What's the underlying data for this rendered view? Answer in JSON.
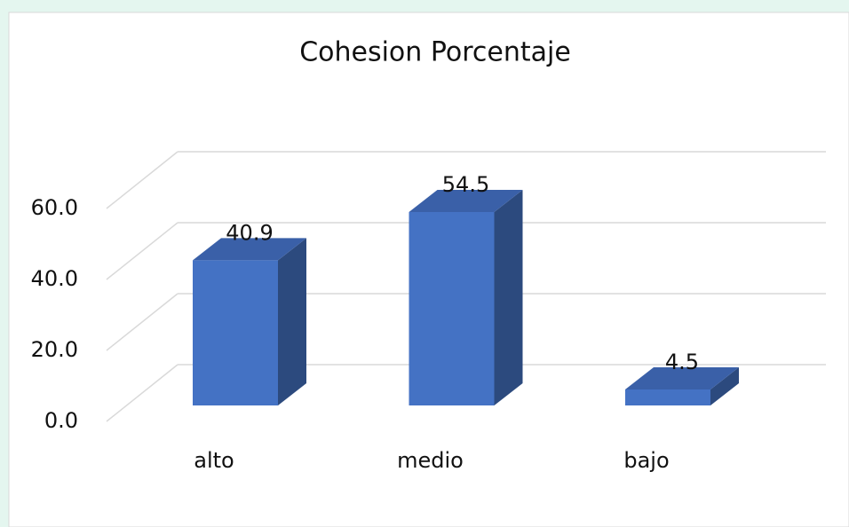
{
  "chart_data": {
    "type": "bar3d",
    "title": "Cohesion Porcentaje",
    "categories": [
      "alto",
      "medio",
      "bajo"
    ],
    "values": [
      40.9,
      54.5,
      4.5
    ],
    "color": "#4472c4",
    "ylim": [
      0,
      60
    ],
    "yticks": [
      {
        "value": 0,
        "label": "0.0"
      },
      {
        "value": 20,
        "label": "20.0"
      },
      {
        "value": 40,
        "label": "40.0"
      },
      {
        "value": 60,
        "label": "60.0"
      }
    ],
    "grid": true
  }
}
